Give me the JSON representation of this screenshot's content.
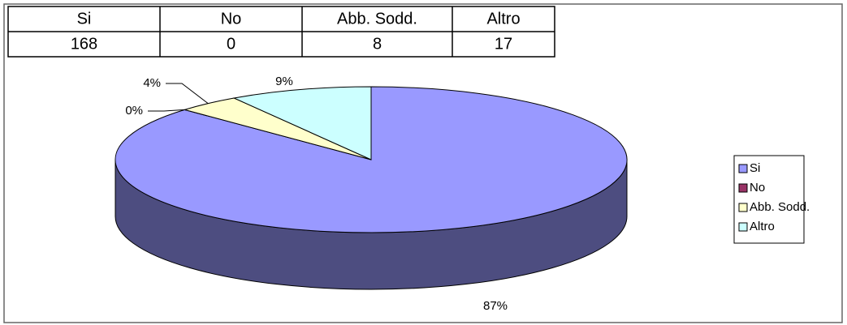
{
  "table": {
    "header": [
      "Si",
      "No",
      "Abb. Sodd.",
      "Altro"
    ],
    "rows": [
      [
        168,
        0,
        8,
        17
      ]
    ]
  },
  "chart_data": {
    "type": "pie",
    "categories": [
      "Si",
      "No",
      "Abb. Sodd.",
      "Altro"
    ],
    "values": [
      87,
      0,
      4,
      9
    ],
    "value_labels": [
      "87%",
      "0%",
      "4%",
      "9%"
    ],
    "colors": [
      "#9999ff",
      "#993366",
      "#ffffcc",
      "#ccffff"
    ],
    "legend": "right"
  }
}
